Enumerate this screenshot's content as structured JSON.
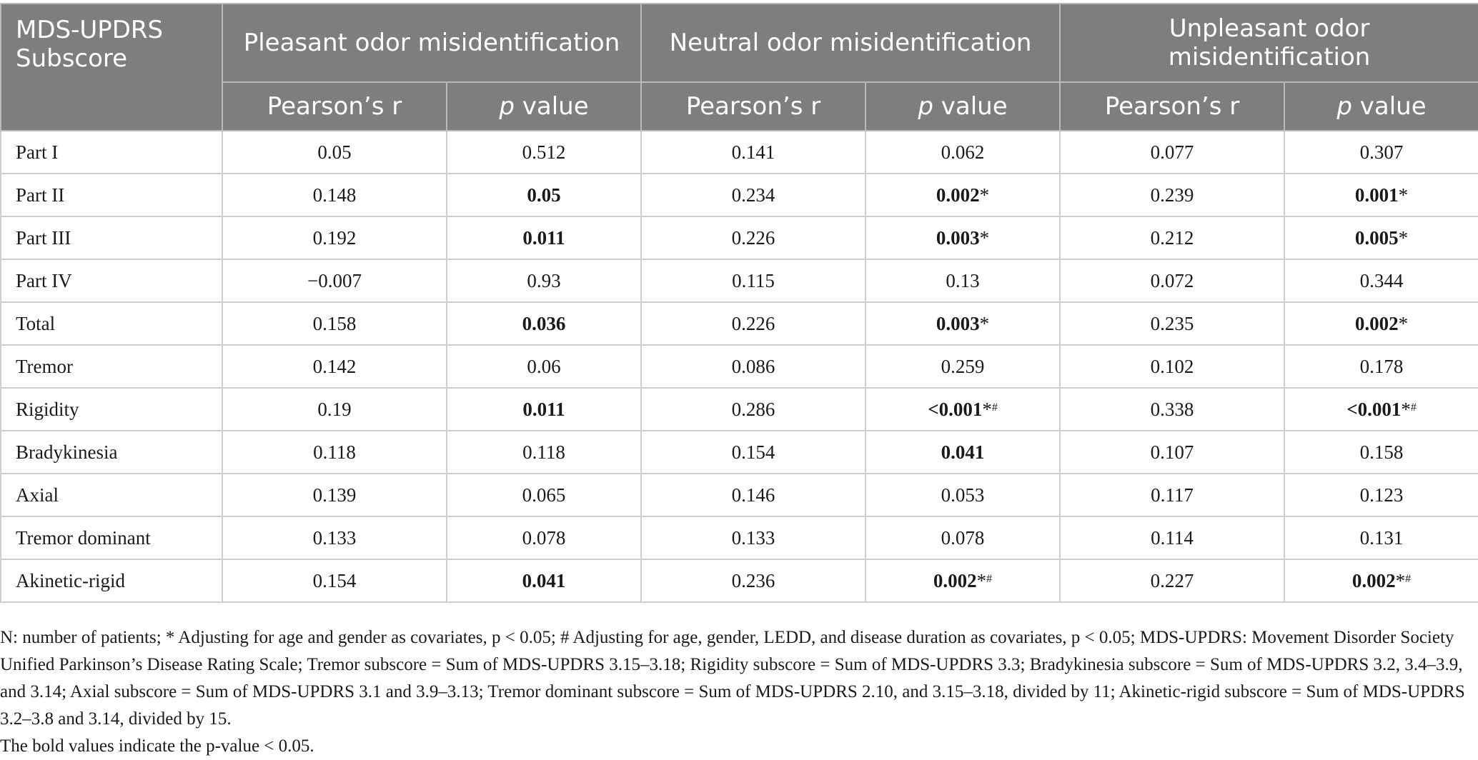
{
  "table": {
    "stub_header": "MDS-UPDRS Subscore",
    "groups": [
      "Pleasant odor misidentification",
      "Neutral odor misidentification",
      "Unpleasant odor misidentification"
    ],
    "subheaders": {
      "r": "Pearson’s r",
      "p_italic": "p",
      "p_rest": " value"
    },
    "rows": [
      {
        "label": "Part I",
        "cells": [
          {
            "text": "0.05",
            "bold": false,
            "mark": "",
            "sup": ""
          },
          {
            "text": "0.512",
            "bold": false,
            "mark": "",
            "sup": ""
          },
          {
            "text": "0.141",
            "bold": false,
            "mark": "",
            "sup": ""
          },
          {
            "text": "0.062",
            "bold": false,
            "mark": "",
            "sup": ""
          },
          {
            "text": "0.077",
            "bold": false,
            "mark": "",
            "sup": ""
          },
          {
            "text": "0.307",
            "bold": false,
            "mark": "",
            "sup": ""
          }
        ]
      },
      {
        "label": "Part II",
        "cells": [
          {
            "text": "0.148",
            "bold": false,
            "mark": "",
            "sup": ""
          },
          {
            "text": "0.05",
            "bold": true,
            "mark": "",
            "sup": ""
          },
          {
            "text": "0.234",
            "bold": false,
            "mark": "",
            "sup": ""
          },
          {
            "text": "0.002",
            "bold": true,
            "mark": "*",
            "sup": ""
          },
          {
            "text": "0.239",
            "bold": false,
            "mark": "",
            "sup": ""
          },
          {
            "text": "0.001",
            "bold": true,
            "mark": "*",
            "sup": ""
          }
        ]
      },
      {
        "label": "Part III",
        "cells": [
          {
            "text": "0.192",
            "bold": false,
            "mark": "",
            "sup": ""
          },
          {
            "text": "0.011",
            "bold": true,
            "mark": "",
            "sup": ""
          },
          {
            "text": "0.226",
            "bold": false,
            "mark": "",
            "sup": ""
          },
          {
            "text": "0.003",
            "bold": true,
            "mark": "*",
            "sup": ""
          },
          {
            "text": "0.212",
            "bold": false,
            "mark": "",
            "sup": ""
          },
          {
            "text": "0.005",
            "bold": true,
            "mark": "*",
            "sup": ""
          }
        ]
      },
      {
        "label": "Part IV",
        "cells": [
          {
            "text": "−0.007",
            "bold": false,
            "mark": "",
            "sup": ""
          },
          {
            "text": "0.93",
            "bold": false,
            "mark": "",
            "sup": ""
          },
          {
            "text": "0.115",
            "bold": false,
            "mark": "",
            "sup": ""
          },
          {
            "text": "0.13",
            "bold": false,
            "mark": "",
            "sup": ""
          },
          {
            "text": "0.072",
            "bold": false,
            "mark": "",
            "sup": ""
          },
          {
            "text": "0.344",
            "bold": false,
            "mark": "",
            "sup": ""
          }
        ]
      },
      {
        "label": "Total",
        "cells": [
          {
            "text": "0.158",
            "bold": false,
            "mark": "",
            "sup": ""
          },
          {
            "text": "0.036",
            "bold": true,
            "mark": "",
            "sup": ""
          },
          {
            "text": "0.226",
            "bold": false,
            "mark": "",
            "sup": ""
          },
          {
            "text": "0.003",
            "bold": true,
            "mark": "*",
            "sup": ""
          },
          {
            "text": "0.235",
            "bold": false,
            "mark": "",
            "sup": ""
          },
          {
            "text": "0.002",
            "bold": true,
            "mark": "*",
            "sup": ""
          }
        ]
      },
      {
        "label": "Tremor",
        "cells": [
          {
            "text": "0.142",
            "bold": false,
            "mark": "",
            "sup": ""
          },
          {
            "text": "0.06",
            "bold": false,
            "mark": "",
            "sup": ""
          },
          {
            "text": "0.086",
            "bold": false,
            "mark": "",
            "sup": ""
          },
          {
            "text": "0.259",
            "bold": false,
            "mark": "",
            "sup": ""
          },
          {
            "text": "0.102",
            "bold": false,
            "mark": "",
            "sup": ""
          },
          {
            "text": "0.178",
            "bold": false,
            "mark": "",
            "sup": ""
          }
        ]
      },
      {
        "label": "Rigidity",
        "cells": [
          {
            "text": "0.19",
            "bold": false,
            "mark": "",
            "sup": ""
          },
          {
            "text": "0.011",
            "bold": true,
            "mark": "",
            "sup": ""
          },
          {
            "text": "0.286",
            "bold": false,
            "mark": "",
            "sup": ""
          },
          {
            "text": "<0.001",
            "bold": true,
            "mark": "*",
            "sup": "#"
          },
          {
            "text": "0.338",
            "bold": false,
            "mark": "",
            "sup": ""
          },
          {
            "text": "<0.001",
            "bold": true,
            "mark": "*",
            "sup": "#"
          }
        ]
      },
      {
        "label": "Bradykinesia",
        "cells": [
          {
            "text": "0.118",
            "bold": false,
            "mark": "",
            "sup": ""
          },
          {
            "text": "0.118",
            "bold": false,
            "mark": "",
            "sup": ""
          },
          {
            "text": "0.154",
            "bold": false,
            "mark": "",
            "sup": ""
          },
          {
            "text": "0.041",
            "bold": true,
            "mark": "",
            "sup": ""
          },
          {
            "text": "0.107",
            "bold": false,
            "mark": "",
            "sup": ""
          },
          {
            "text": "0.158",
            "bold": false,
            "mark": "",
            "sup": ""
          }
        ]
      },
      {
        "label": "Axial",
        "cells": [
          {
            "text": "0.139",
            "bold": false,
            "mark": "",
            "sup": ""
          },
          {
            "text": "0.065",
            "bold": false,
            "mark": "",
            "sup": ""
          },
          {
            "text": "0.146",
            "bold": false,
            "mark": "",
            "sup": ""
          },
          {
            "text": "0.053",
            "bold": false,
            "mark": "",
            "sup": ""
          },
          {
            "text": "0.117",
            "bold": false,
            "mark": "",
            "sup": ""
          },
          {
            "text": "0.123",
            "bold": false,
            "mark": "",
            "sup": ""
          }
        ]
      },
      {
        "label": "Tremor dominant",
        "cells": [
          {
            "text": "0.133",
            "bold": false,
            "mark": "",
            "sup": ""
          },
          {
            "text": "0.078",
            "bold": false,
            "mark": "",
            "sup": ""
          },
          {
            "text": "0.133",
            "bold": false,
            "mark": "",
            "sup": ""
          },
          {
            "text": "0.078",
            "bold": false,
            "mark": "",
            "sup": ""
          },
          {
            "text": "0.114",
            "bold": false,
            "mark": "",
            "sup": ""
          },
          {
            "text": "0.131",
            "bold": false,
            "mark": "",
            "sup": ""
          }
        ]
      },
      {
        "label": "Akinetic-rigid",
        "cells": [
          {
            "text": "0.154",
            "bold": false,
            "mark": "",
            "sup": ""
          },
          {
            "text": "0.041",
            "bold": true,
            "mark": "",
            "sup": ""
          },
          {
            "text": "0.236",
            "bold": false,
            "mark": "",
            "sup": ""
          },
          {
            "text": "0.002",
            "bold": true,
            "mark": "*",
            "sup": "#"
          },
          {
            "text": "0.227",
            "bold": false,
            "mark": "",
            "sup": ""
          },
          {
            "text": "0.002",
            "bold": true,
            "mark": "*",
            "sup": "#"
          }
        ]
      }
    ]
  },
  "footnote": {
    "main": "N: number of patients; * Adjusting for age and gender as covariates, p < 0.05; # Adjusting for age, gender, LEDD, and disease duration as covariates, p < 0.05; MDS-UPDRS: Movement Disorder Society Unified Parkinson’s Disease Rating Scale; Tremor subscore = Sum of MDS-UPDRS 3.15–3.18; Rigidity subscore = Sum of MDS-UPDRS 3.3; Bradykinesia subscore = Sum of MDS-UPDRS 3.2, 3.4–3.9, and 3.14; Axial subscore = Sum of MDS-UPDRS 3.1 and 3.9–3.13; Tremor dominant subscore = Sum of MDS-UPDRS 2.10, and 3.15–3.18, divided by 11; Akinetic-rigid subscore = Sum of MDS-UPDRS 3.2–3.8 and 3.14, divided by 15.",
    "bold_note": "The bold values indicate the p-value < 0.05."
  },
  "colors": {
    "header_bg": "#7d7e7e",
    "header_text": "#ffffff",
    "grid_line": "#cfcfcf",
    "body_text": "#1a1a1a"
  }
}
